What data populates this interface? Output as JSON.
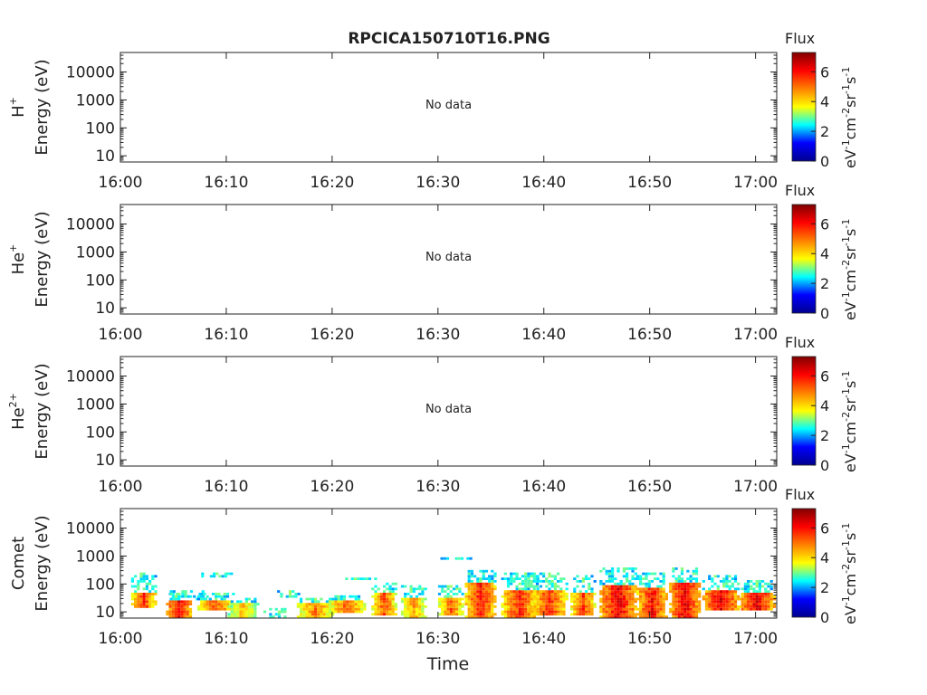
{
  "title": "RPCICA150710T16.PNG",
  "x_label": "Time",
  "x_ticks": [
    "16:00",
    "16:10",
    "16:20",
    "16:30",
    "16:40",
    "16:50",
    "17:00"
  ],
  "y_ticks": [
    "10000",
    "1000",
    "100",
    "10"
  ],
  "y_label": "Energy (eV)",
  "colorbar": {
    "title": "Flux",
    "ticks": [
      "6",
      "4",
      "2",
      "0"
    ],
    "units": [
      "eV",
      "-1",
      "cm",
      "-2",
      "sr",
      "-1",
      "s",
      "-1"
    ],
    "colors": [
      "#00008f",
      "#0000ff",
      "#00ffff",
      "#ffff00",
      "#ff8000",
      "#ff0000",
      "#800000"
    ]
  },
  "panels": [
    {
      "species": "H",
      "charge": "+",
      "message": "No data"
    },
    {
      "species": "He",
      "charge": "+",
      "message": "No data"
    },
    {
      "species": "He",
      "charge": "2+",
      "message": "No data"
    },
    {
      "species": "Comet",
      "charge": "",
      "message": ""
    }
  ],
  "chart_data": {
    "type": "heatmap",
    "title": "RPCICA150710T16.PNG",
    "xlabel": "Time",
    "x_range": [
      "16:00",
      "17:02"
    ],
    "y_scale": "log",
    "y_range_eV": [
      6,
      50000
    ],
    "color_range": [
      0,
      7.3
    ],
    "comet_bursts": [
      {
        "time_min": 2.1,
        "e_low": 14,
        "e_high": 280,
        "core_high": 45,
        "peak": 6.5
      },
      {
        "time_min": 5.4,
        "e_low": 6,
        "e_high": 50,
        "core_high": 25,
        "peak": 7.0
      },
      {
        "time_min": 6.3,
        "e_low": 28,
        "e_high": 55,
        "core_high": 0,
        "peak": 3.0
      },
      {
        "time_min": 8.9,
        "e_low": 11,
        "e_high": 50,
        "core_high": 28,
        "peak": 6.3
      },
      {
        "time_min": 9.0,
        "e_low": 180,
        "e_high": 240,
        "core_high": 0,
        "peak": 3.5
      },
      {
        "time_min": 11.5,
        "e_low": 6,
        "e_high": 32,
        "core_high": 20,
        "peak": 5.5
      },
      {
        "time_min": 14.6,
        "e_low": 6,
        "e_high": 14,
        "core_high": 0,
        "peak": 4.0
      },
      {
        "time_min": 15.9,
        "e_low": 35,
        "e_high": 55,
        "core_high": 0,
        "peak": 4.3
      },
      {
        "time_min": 18.3,
        "e_low": 6,
        "e_high": 30,
        "core_high": 20,
        "peak": 6.0
      },
      {
        "time_min": 21.3,
        "e_low": 10,
        "e_high": 40,
        "core_high": 28,
        "peak": 6.2
      },
      {
        "time_min": 22.6,
        "e_low": 140,
        "e_high": 180,
        "core_high": 0,
        "peak": 3.2
      },
      {
        "time_min": 24.8,
        "e_low": 8,
        "e_high": 110,
        "core_high": 50,
        "peak": 6.3
      },
      {
        "time_min": 27.6,
        "e_low": 6,
        "e_high": 90,
        "core_high": 30,
        "peak": 5.8
      },
      {
        "time_min": 31.1,
        "e_low": 8,
        "e_high": 90,
        "core_high": 35,
        "peak": 6.2
      },
      {
        "time_min": 31.6,
        "e_low": 800,
        "e_high": 1000,
        "core_high": 0,
        "peak": 4.0
      },
      {
        "time_min": 33.9,
        "e_low": 6,
        "e_high": 300,
        "core_high": 120,
        "peak": 6.7
      },
      {
        "time_min": 37.6,
        "e_low": 6,
        "e_high": 260,
        "core_high": 60,
        "peak": 6.6
      },
      {
        "time_min": 40.4,
        "e_low": 8,
        "e_high": 260,
        "core_high": 60,
        "peak": 6.5
      },
      {
        "time_min": 43.6,
        "e_low": 8,
        "e_high": 220,
        "core_high": 50,
        "peak": 6.4
      },
      {
        "time_min": 46.9,
        "e_low": 6,
        "e_high": 420,
        "core_high": 90,
        "peak": 7.0
      },
      {
        "time_min": 50.1,
        "e_low": 6,
        "e_high": 260,
        "core_high": 80,
        "peak": 6.8
      },
      {
        "time_min": 53.2,
        "e_low": 6,
        "e_high": 360,
        "core_high": 110,
        "peak": 7.0
      },
      {
        "time_min": 56.6,
        "e_low": 12,
        "e_high": 220,
        "core_high": 55,
        "peak": 7.0
      },
      {
        "time_min": 60.0,
        "e_low": 12,
        "e_high": 140,
        "core_high": 50,
        "peak": 7.0
      }
    ]
  }
}
